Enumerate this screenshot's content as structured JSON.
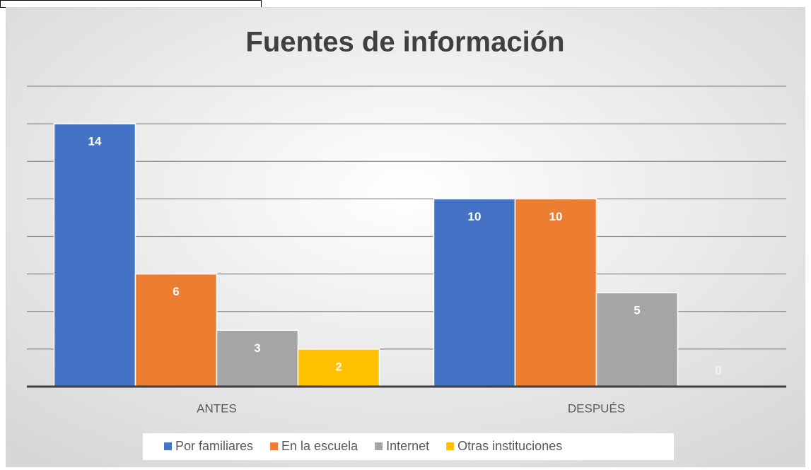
{
  "chart_data": {
    "type": "bar",
    "title": "Fuentes de información",
    "categories": [
      "ANTES",
      "DESPUÉS"
    ],
    "series": [
      {
        "name": "Por familiares",
        "color": "#4472c4",
        "values": [
          14,
          10
        ]
      },
      {
        "name": "En la escuela",
        "color": "#ed7d31",
        "values": [
          6,
          10
        ]
      },
      {
        "name": "Internet",
        "color": "#a5a5a5",
        "values": [
          3,
          5
        ]
      },
      {
        "name": "Otras instituciones",
        "color": "#ffc000",
        "values": [
          2,
          0
        ]
      }
    ],
    "ylim": [
      0,
      16
    ],
    "yticks": [
      0,
      2,
      4,
      6,
      8,
      10,
      12,
      14,
      16
    ],
    "grid": true,
    "legend": "bottom"
  }
}
